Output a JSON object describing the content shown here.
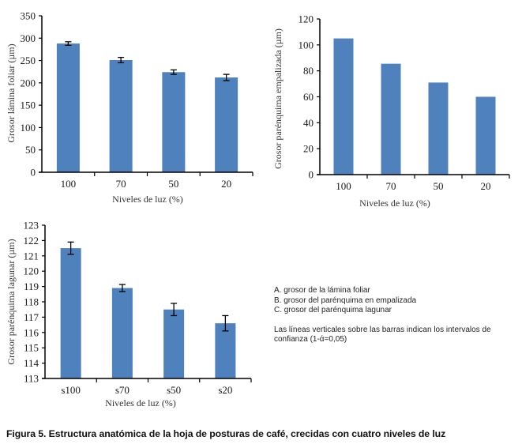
{
  "colors": {
    "bar": "#4f81bd",
    "axis": "#000000",
    "errorbar": "#000000"
  },
  "chart_data": [
    {
      "id": "A",
      "type": "bar",
      "categories": [
        "100",
        "70",
        "50",
        "20"
      ],
      "values": [
        288,
        251,
        224,
        212
      ],
      "error": [
        4,
        6,
        5,
        7
      ],
      "xlabel": "Niveles de luz (%)",
      "ylabel": "Grosor lámina foliar (µm)",
      "ylim": [
        0,
        350
      ],
      "yticks": [
        0,
        50,
        100,
        150,
        200,
        250,
        300,
        350
      ],
      "grid": false
    },
    {
      "id": "B",
      "type": "bar",
      "categories": [
        "100",
        "70",
        "50",
        "20"
      ],
      "values": [
        105,
        85.5,
        71,
        60
      ],
      "error": null,
      "xlabel": "Niveles de luz (%)",
      "ylabel": "Grosor parénquima empalizada (µm)",
      "ylim": [
        0,
        120
      ],
      "yticks": [
        0,
        20,
        40,
        60,
        80,
        100,
        120
      ],
      "grid": false
    },
    {
      "id": "C",
      "type": "bar",
      "categories": [
        "s100",
        "s70",
        "s50",
        "s20"
      ],
      "values": [
        121.5,
        118.9,
        117.5,
        116.6
      ],
      "error": [
        0.4,
        0.23,
        0.4,
        0.5
      ],
      "xlabel": "Niveles de luz (%)",
      "ylabel": "Grosor parénquima lagunar (µm)",
      "ylim": [
        113,
        123
      ],
      "yticks": [
        113,
        114,
        115,
        116,
        117,
        118,
        119,
        120,
        121,
        122,
        123
      ],
      "grid": false
    }
  ],
  "legend_notes": {
    "items": [
      "A. grosor de la lámina foliar",
      "B. grosor del parénquima en empalizada",
      "C. grosor del parénquima lagunar"
    ],
    "note_line1": "Las líneas verticales sobre las barras indican los intervalos de",
    "note_line2": "confianza (1-ά=0,05)"
  },
  "caption": "Figura 5. Estructura anatómica de la hoja de posturas de café, crecidas con cuatro niveles de luz"
}
